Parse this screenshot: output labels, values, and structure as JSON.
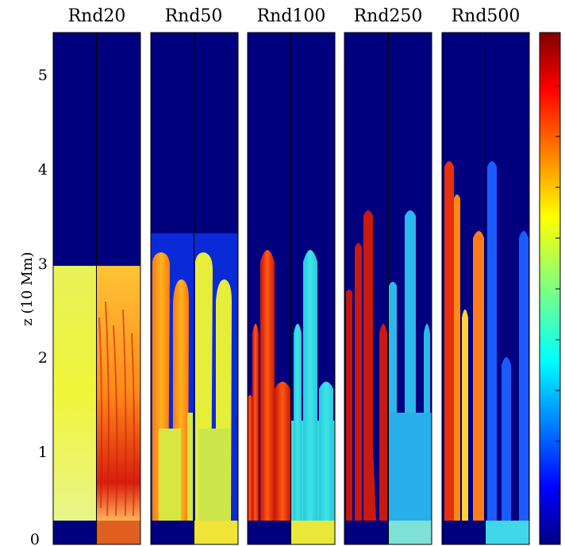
{
  "figure": {
    "panels": [
      {
        "title": "Rnd20"
      },
      {
        "title": "Rnd50"
      },
      {
        "title": "Rnd100"
      },
      {
        "title": "Rnd250"
      },
      {
        "title": "Rnd500"
      }
    ],
    "y_axis": {
      "label": "z (10 Mm)",
      "ticks": [
        "0",
        "1",
        "2",
        "3",
        "4",
        "5"
      ]
    },
    "colors": {
      "background": "#00007f",
      "colormap": "jet"
    }
  }
}
